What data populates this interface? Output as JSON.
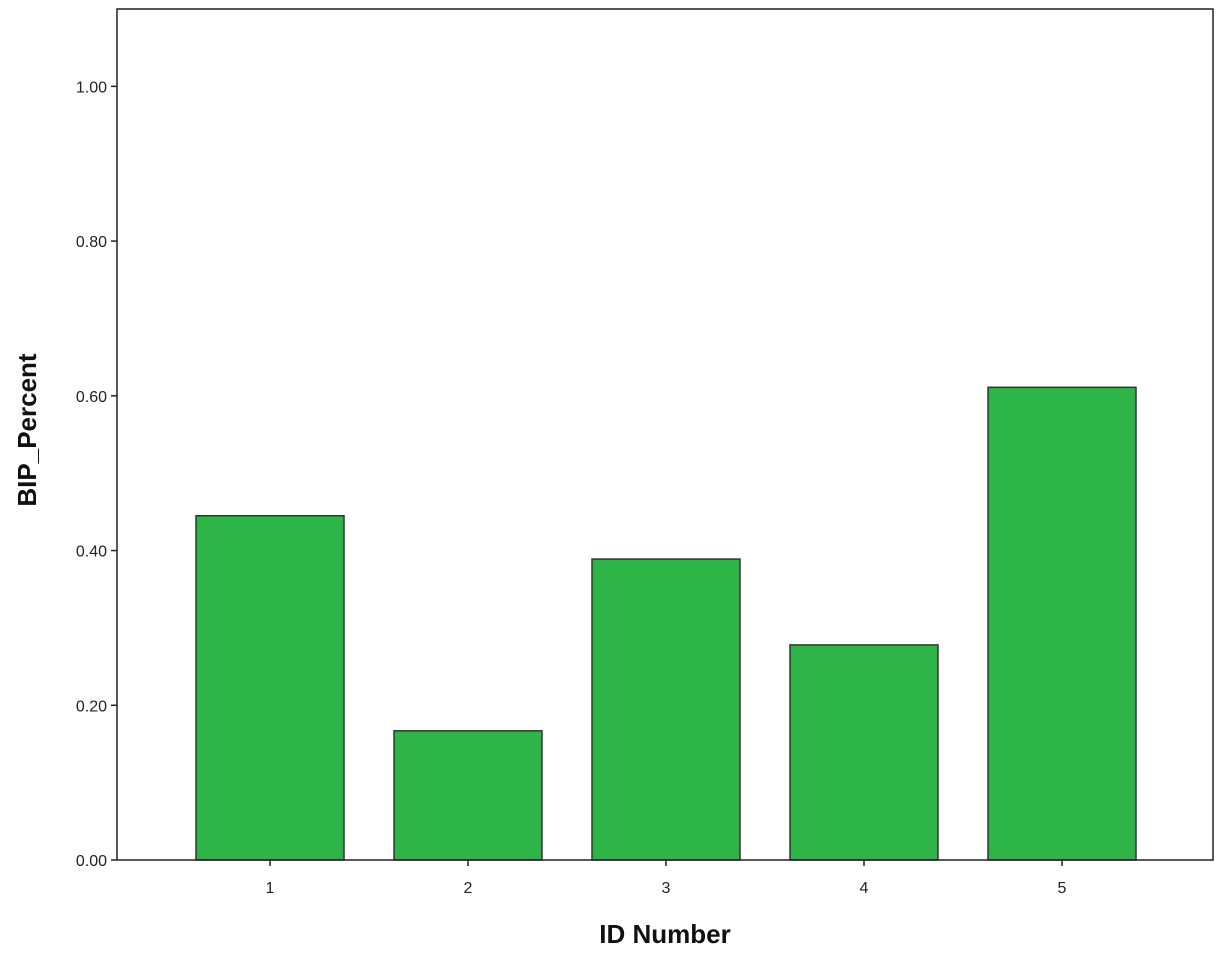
{
  "chart_data": {
    "type": "bar",
    "title": "",
    "xlabel": "ID Number",
    "ylabel": "BIP_Percent",
    "categories": [
      "1",
      "2",
      "3",
      "4",
      "5"
    ],
    "values": [
      0.445,
      0.167,
      0.389,
      0.278,
      0.611
    ],
    "ylim": [
      0,
      1.1
    ],
    "y_ticks": [
      "0.00",
      "0.20",
      "0.40",
      "0.60",
      "0.80",
      "1.00"
    ],
    "bar_color": "#2db547",
    "bar_edge_color": "#333333",
    "grid": false,
    "legend": "none"
  }
}
